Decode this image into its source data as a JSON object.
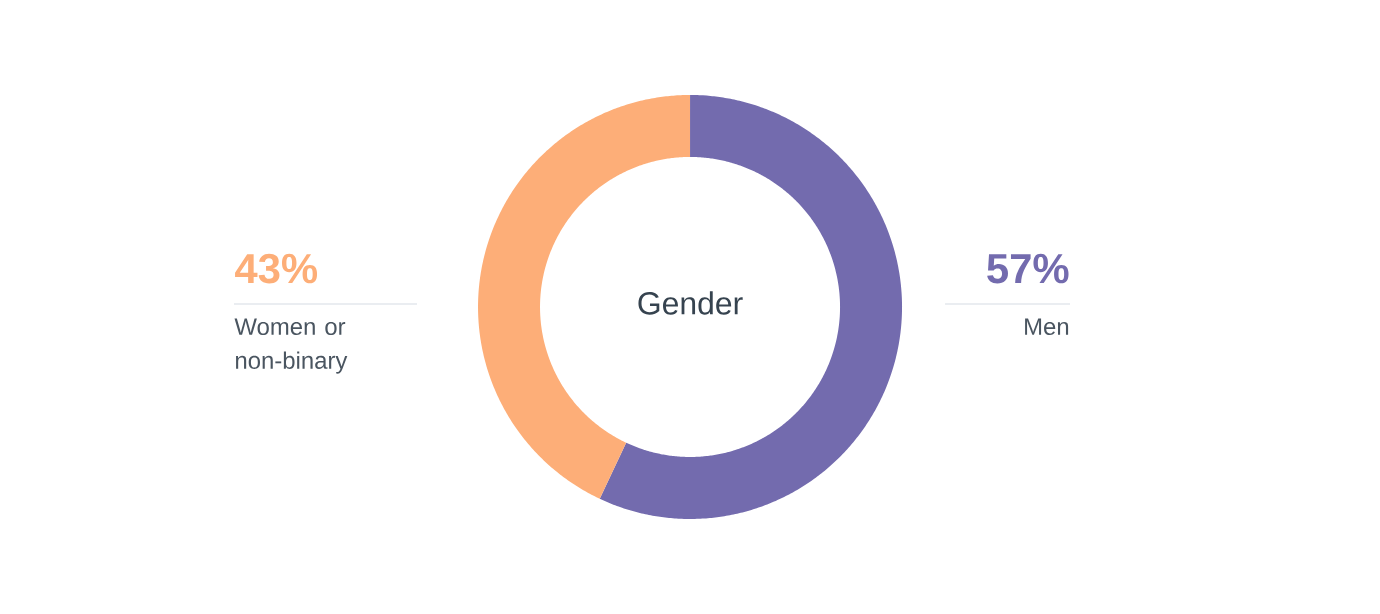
{
  "chart_data": {
    "type": "donut",
    "title": "Gender",
    "categories": [
      "Men",
      "Women or non-binary"
    ],
    "values": [
      57,
      43
    ],
    "colors": [
      "#736bae",
      "#fdae78"
    ],
    "value_labels": [
      "57%",
      "43%"
    ]
  }
}
